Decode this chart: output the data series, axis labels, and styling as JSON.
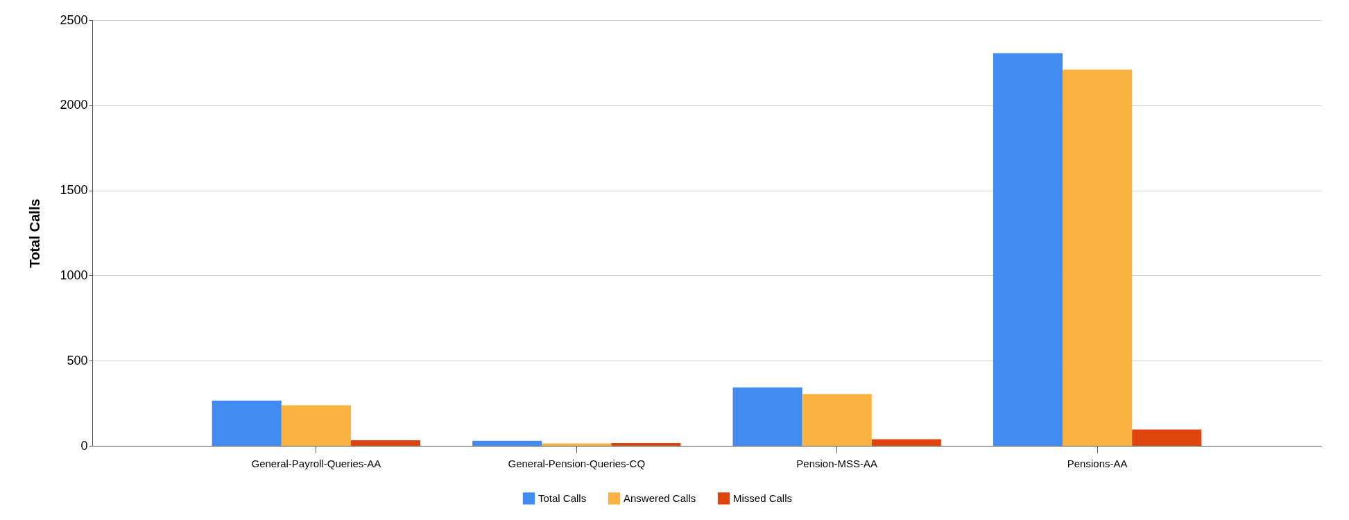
{
  "chart_data": {
    "type": "bar",
    "ylabel": "Total Calls",
    "categories": [
      "General-Payroll-Queries-AA",
      "General-Pension-Queries-CQ",
      "Pension-MSS-AA",
      "Pensions-AA"
    ],
    "series": [
      {
        "name": "Total Calls",
        "color": "#428bf0",
        "values": [
          266,
          30,
          343,
          2306
        ]
      },
      {
        "name": "Answered Calls",
        "color": "#fab341",
        "values": [
          238,
          14,
          304,
          2209
        ]
      },
      {
        "name": "Missed Calls",
        "color": "#e0440e",
        "values": [
          33,
          16,
          39,
          96
        ]
      }
    ],
    "ylim": [
      0,
      2500
    ],
    "yticks": [
      0,
      500,
      1000,
      1500,
      2000,
      2500
    ],
    "grid": "y",
    "legend": "bottom"
  }
}
